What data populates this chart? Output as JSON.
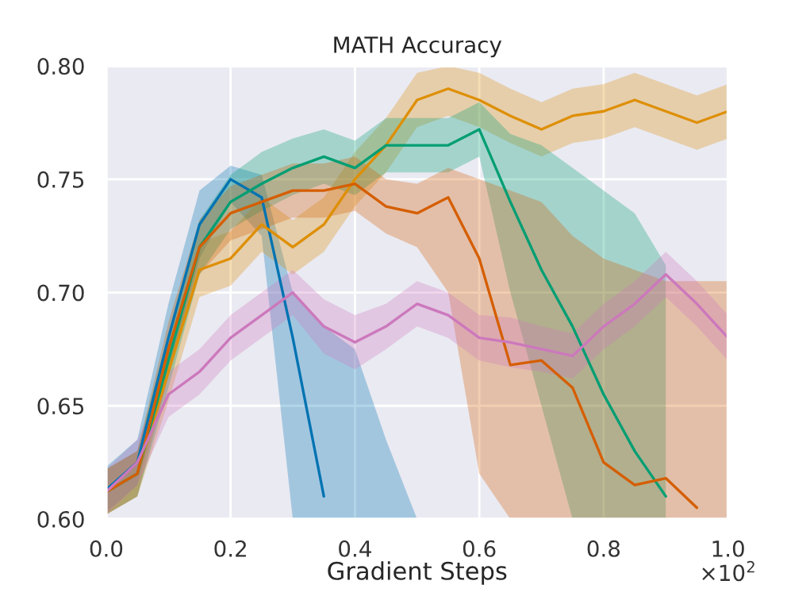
{
  "chart_data": {
    "type": "line",
    "title": "MATH Accuracy",
    "xlabel": "Gradient Steps",
    "annotations": [
      "×10$^{2}$"
    ],
    "x": [
      0.0,
      0.05,
      0.1,
      0.15,
      0.2,
      0.25,
      0.3,
      0.35,
      0.4,
      0.45,
      0.5,
      0.55,
      0.6,
      0.65,
      0.7,
      0.75,
      0.8,
      0.85,
      0.9,
      0.95,
      1.0
    ],
    "series": [
      {
        "color": "#0173b2",
        "values": [
          0.613,
          0.625,
          0.68,
          0.73,
          0.75,
          0.742,
          0.68,
          0.61,
          null,
          null,
          null,
          null,
          null,
          null,
          null,
          null,
          null,
          null,
          null,
          null,
          null
        ],
        "lower": [
          0.603,
          0.615,
          0.665,
          0.715,
          0.74,
          0.725,
          0.6,
          0.6,
          0.6,
          0.6,
          0.6,
          null,
          null,
          null,
          null,
          null,
          null,
          null,
          null,
          null,
          null
        ],
        "upper": [
          0.623,
          0.635,
          0.695,
          0.745,
          0.756,
          0.752,
          0.7,
          0.685,
          0.675,
          0.635,
          0.6,
          null,
          null,
          null,
          null,
          null,
          null,
          null,
          null,
          null,
          null
        ]
      },
      {
        "color": "#de8f05",
        "values": [
          0.612,
          0.62,
          0.665,
          0.71,
          0.715,
          0.73,
          0.72,
          0.73,
          0.75,
          0.765,
          0.785,
          0.79,
          0.785,
          0.778,
          0.772,
          0.778,
          0.78,
          0.785,
          0.78,
          0.775,
          0.78
        ],
        "lower": [
          0.602,
          0.61,
          0.652,
          0.698,
          0.703,
          0.718,
          0.708,
          0.718,
          0.738,
          0.753,
          0.773,
          0.778,
          0.773,
          0.766,
          0.76,
          0.766,
          0.768,
          0.773,
          0.768,
          0.763,
          0.768
        ],
        "upper": [
          0.622,
          0.63,
          0.677,
          0.722,
          0.727,
          0.742,
          0.732,
          0.742,
          0.762,
          0.777,
          0.797,
          0.8,
          0.797,
          0.79,
          0.784,
          0.79,
          0.792,
          0.797,
          0.792,
          0.787,
          0.792
        ]
      },
      {
        "color": "#029e73",
        "values": [
          0.612,
          0.62,
          0.67,
          0.72,
          0.74,
          0.748,
          0.755,
          0.76,
          0.755,
          0.765,
          0.765,
          0.765,
          0.772,
          0.74,
          0.71,
          0.685,
          0.655,
          0.63,
          0.61,
          null,
          null
        ],
        "lower": [
          0.602,
          0.61,
          0.658,
          0.708,
          0.728,
          0.736,
          0.743,
          0.748,
          0.743,
          0.753,
          0.753,
          0.753,
          0.76,
          0.7,
          0.65,
          0.6,
          0.6,
          0.6,
          0.6,
          null,
          null
        ],
        "upper": [
          0.622,
          0.63,
          0.682,
          0.732,
          0.752,
          0.762,
          0.768,
          0.772,
          0.767,
          0.777,
          0.777,
          0.777,
          0.784,
          0.77,
          0.765,
          0.755,
          0.745,
          0.735,
          0.712,
          null,
          null
        ]
      },
      {
        "color": "#d55e00",
        "values": [
          0.612,
          0.62,
          0.675,
          0.72,
          0.735,
          0.74,
          0.745,
          0.745,
          0.748,
          0.738,
          0.735,
          0.742,
          0.715,
          0.668,
          0.67,
          0.658,
          0.625,
          0.615,
          0.618,
          0.605,
          null
        ],
        "lower": [
          0.602,
          0.61,
          0.663,
          0.708,
          0.723,
          0.728,
          0.733,
          0.733,
          0.736,
          0.726,
          0.72,
          0.7,
          0.62,
          0.6,
          0.6,
          0.6,
          0.6,
          0.6,
          0.6,
          0.6,
          0.6
        ],
        "upper": [
          0.622,
          0.63,
          0.687,
          0.732,
          0.747,
          0.752,
          0.757,
          0.757,
          0.76,
          0.75,
          0.748,
          0.755,
          0.75,
          0.745,
          0.74,
          0.725,
          0.715,
          0.71,
          0.705,
          0.705,
          0.705
        ]
      },
      {
        "color": "#cc78bc",
        "values": [
          0.612,
          0.625,
          0.655,
          0.665,
          0.68,
          0.69,
          0.7,
          0.685,
          0.678,
          0.685,
          0.695,
          0.69,
          0.68,
          0.678,
          0.675,
          0.672,
          0.685,
          0.695,
          0.708,
          0.695,
          0.68
        ],
        "lower": [
          0.602,
          0.615,
          0.645,
          0.655,
          0.67,
          0.68,
          0.69,
          0.673,
          0.666,
          0.675,
          0.685,
          0.68,
          0.67,
          0.667,
          0.665,
          0.662,
          0.675,
          0.685,
          0.698,
          0.685,
          0.67
        ],
        "upper": [
          0.622,
          0.635,
          0.665,
          0.675,
          0.69,
          0.7,
          0.71,
          0.697,
          0.69,
          0.695,
          0.705,
          0.7,
          0.69,
          0.689,
          0.685,
          0.682,
          0.695,
          0.705,
          0.718,
          0.705,
          0.69
        ]
      }
    ],
    "xlim": [
      0.0,
      1.0
    ],
    "ylim": [
      0.6,
      0.8
    ],
    "xticks": [
      {
        "value": 0.0,
        "label": "0.0"
      },
      0.2,
      0.4,
      0.6,
      0.8,
      {
        "value": 1.0,
        "label": "1.0"
      }
    ],
    "yticks": [
      {
        "value": 0.6,
        "label": "0.60"
      },
      0.65,
      {
        "value": 0.7,
        "label": "0.70"
      },
      0.75,
      {
        "value": 0.8,
        "label": "0.80"
      }
    ],
    "grid": true,
    "legend": false
  }
}
